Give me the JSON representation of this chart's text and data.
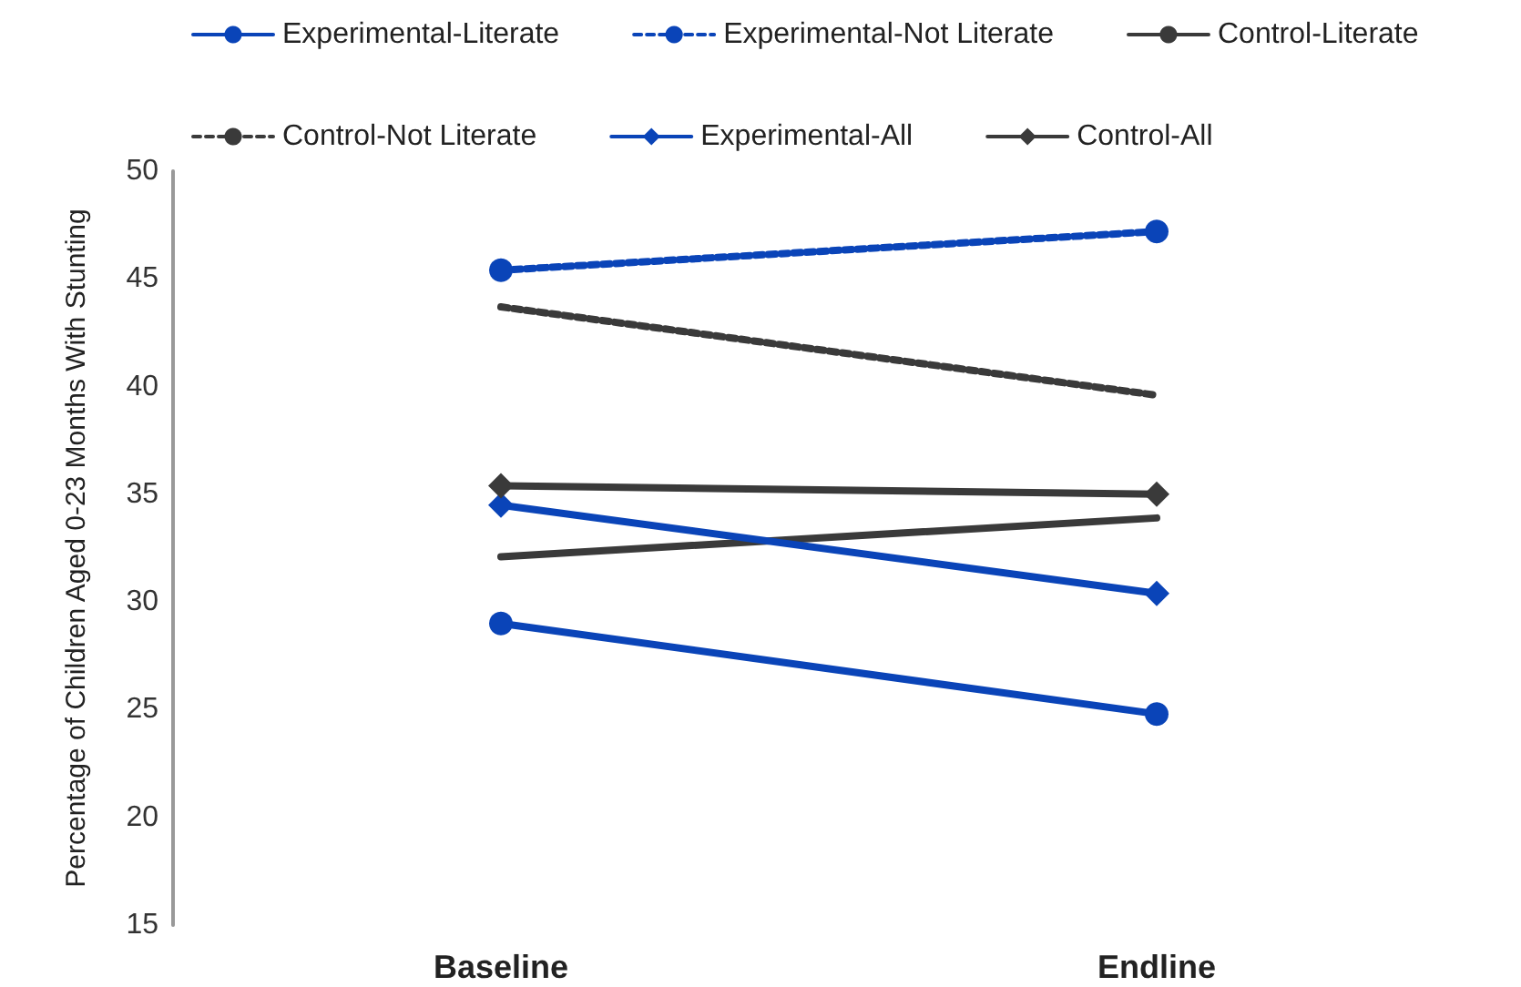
{
  "chart_data": {
    "type": "line",
    "ylabel": "Percentage of Children Aged 0-23 Months With Stunting",
    "categories": [
      "Baseline",
      "Endline"
    ],
    "ylim": [
      15,
      50
    ],
    "yticks": [
      15,
      20,
      25,
      30,
      35,
      40,
      45,
      50
    ],
    "grid": false,
    "legend": "top",
    "series": [
      {
        "name": "Experimental-Literate",
        "color": "#0a44b8",
        "values": [
          29.0,
          24.8
        ],
        "marker": "circle",
        "line_style": "solid"
      },
      {
        "name": "Experimental-Not Literate",
        "color": "#0a44b8",
        "values": [
          45.4,
          47.2
        ],
        "marker": "circle",
        "line_style": "dashed"
      },
      {
        "name": "Control-Literate",
        "color": "#3a3a3a",
        "values": [
          32.1,
          33.9
        ],
        "marker": "none",
        "line_style": "solid"
      },
      {
        "name": "Control-Not Literate",
        "color": "#3a3a3a",
        "values": [
          43.7,
          39.6
        ],
        "marker": "none",
        "line_style": "dashed"
      },
      {
        "name": "Experimental-All",
        "color": "#0a44b8",
        "values": [
          34.5,
          30.4
        ],
        "marker": "diamond",
        "line_style": "solid"
      },
      {
        "name": "Control-All",
        "color": "#3a3a3a",
        "values": [
          35.4,
          35.0
        ],
        "marker": "diamond",
        "line_style": "solid"
      }
    ]
  }
}
